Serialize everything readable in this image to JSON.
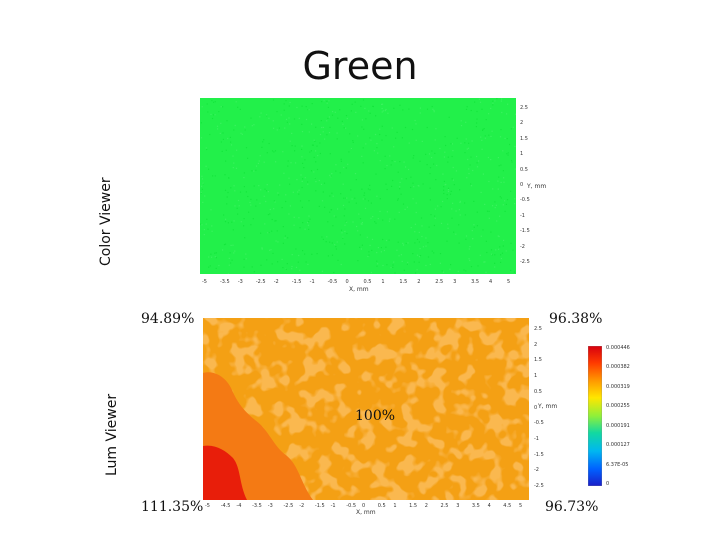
{
  "title": "Green",
  "color_viewer": {
    "label": "Color Viewer",
    "x_axis_label": "X, mm",
    "y_axis_label": "Y, mm",
    "x_ticks": [
      "-5",
      "-3.5",
      "-3",
      "-2.5",
      "-2",
      "-1.5",
      "-1",
      "-0.5",
      "0",
      "0.5",
      "1",
      "1.5",
      "2",
      "2.5",
      "3",
      "3.5",
      "4",
      "5"
    ],
    "y_ticks": [
      "2.5",
      "2",
      "1.5",
      "1",
      "0.5",
      "0",
      "-0.5",
      "-1",
      "-1.5",
      "-2",
      "-2.5"
    ],
    "fill_color": "#22f04a"
  },
  "lum_viewer": {
    "label": "Lum Viewer",
    "x_axis_label": "X, mm",
    "y_axis_label": "Y, mm",
    "corner_top_left": "94.89%",
    "corner_top_right": "96.38%",
    "center": "100%",
    "corner_bottom_left": "111.35%",
    "corner_bottom_right": "96.73%",
    "x_ticks": [
      "-5",
      "-4.5",
      "-4",
      "-3.5",
      "-3",
      "-2.5",
      "-2",
      "-1.5",
      "-1",
      "-0.5",
      "0",
      "0.5",
      "1",
      "1.5",
      "2",
      "2.5",
      "3",
      "3.5",
      "4",
      "4.5",
      "5"
    ],
    "y_ticks": [
      "2.5",
      "2",
      "1.5",
      "1",
      "0.5",
      "0",
      "-0.5",
      "-1",
      "-1.5",
      "-2",
      "-2.5"
    ],
    "colorbar_ticks": [
      "0.000446",
      "0.000382",
      "0.000319",
      "0.000255",
      "0.000191",
      "0.000127",
      "6.37E-05",
      "0"
    ],
    "colors": {
      "base": "#f4a014",
      "mid": "#f47a14",
      "hot": "#e81e0a"
    }
  }
}
